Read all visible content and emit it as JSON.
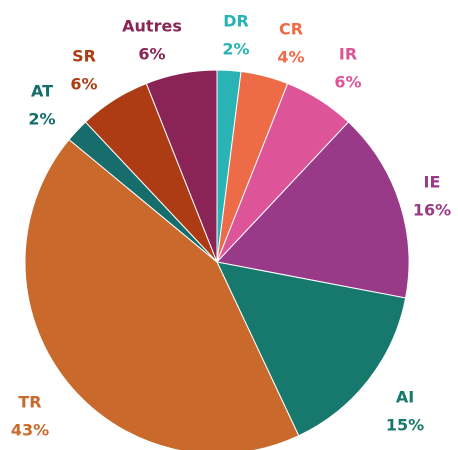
{
  "chart_data": {
    "type": "pie",
    "categories": [
      "DR",
      "CR",
      "IR",
      "IE",
      "AI",
      "TR",
      "AT",
      "SR",
      "Autres"
    ],
    "values": [
      2,
      4,
      6,
      16,
      15,
      43,
      2,
      6,
      6
    ],
    "value_labels": [
      "2%",
      "4%",
      "6%",
      "16%",
      "15%",
      "43%",
      "2%",
      "6%",
      "6%"
    ],
    "colors": [
      "#2ab3b5",
      "#ee6b48",
      "#de5499",
      "#983a88",
      "#17796d",
      "#c96a2c",
      "#176d6b",
      "#ad3c15",
      "#8a2457"
    ]
  }
}
